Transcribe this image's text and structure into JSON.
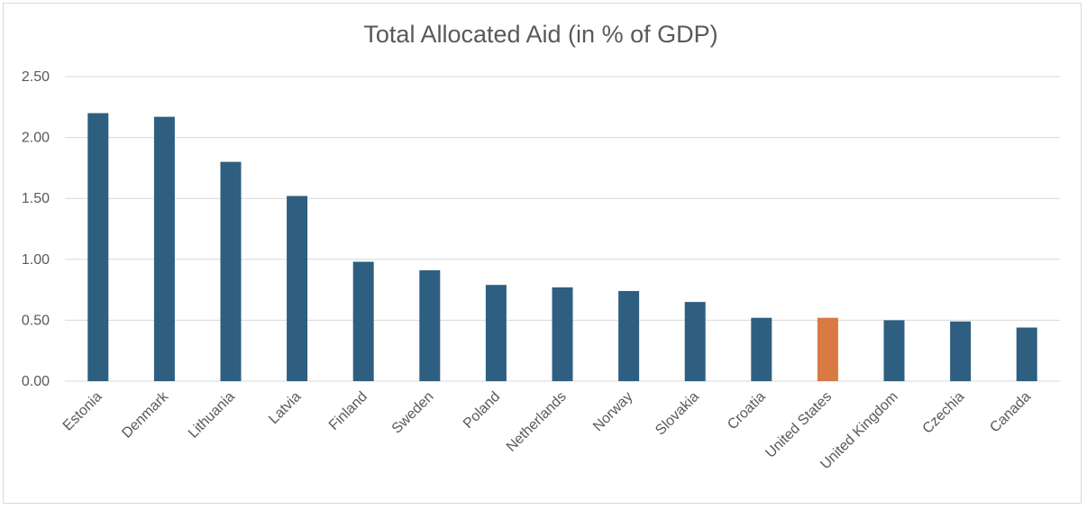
{
  "chart_data": {
    "type": "bar",
    "title": "Total Allocated Aid (in % of GDP)",
    "xlabel": "",
    "ylabel": "",
    "categories": [
      "Estonia",
      "Denmark",
      "Lithuania",
      "Latvia",
      "Finland",
      "Sweden",
      "Poland",
      "Netherlands",
      "Norway",
      "Slovakia",
      "Croatia",
      "United States",
      "United Kingdom",
      "Czechia",
      "Canada"
    ],
    "values": [
      2.2,
      2.17,
      1.8,
      1.52,
      0.98,
      0.91,
      0.79,
      0.77,
      0.74,
      0.65,
      0.52,
      0.52,
      0.5,
      0.49,
      0.44
    ],
    "ylim": [
      0,
      2.5
    ],
    "yticks": [
      "0.00",
      "0.50",
      "1.00",
      "1.50",
      "2.00",
      "2.50"
    ],
    "grid": true,
    "legend": "none",
    "colors": {
      "default": "#2e5f80",
      "highlight": "#d97a43",
      "gridline": "#d9d9d9",
      "text": "#595959"
    },
    "highlight_category": "United States"
  }
}
